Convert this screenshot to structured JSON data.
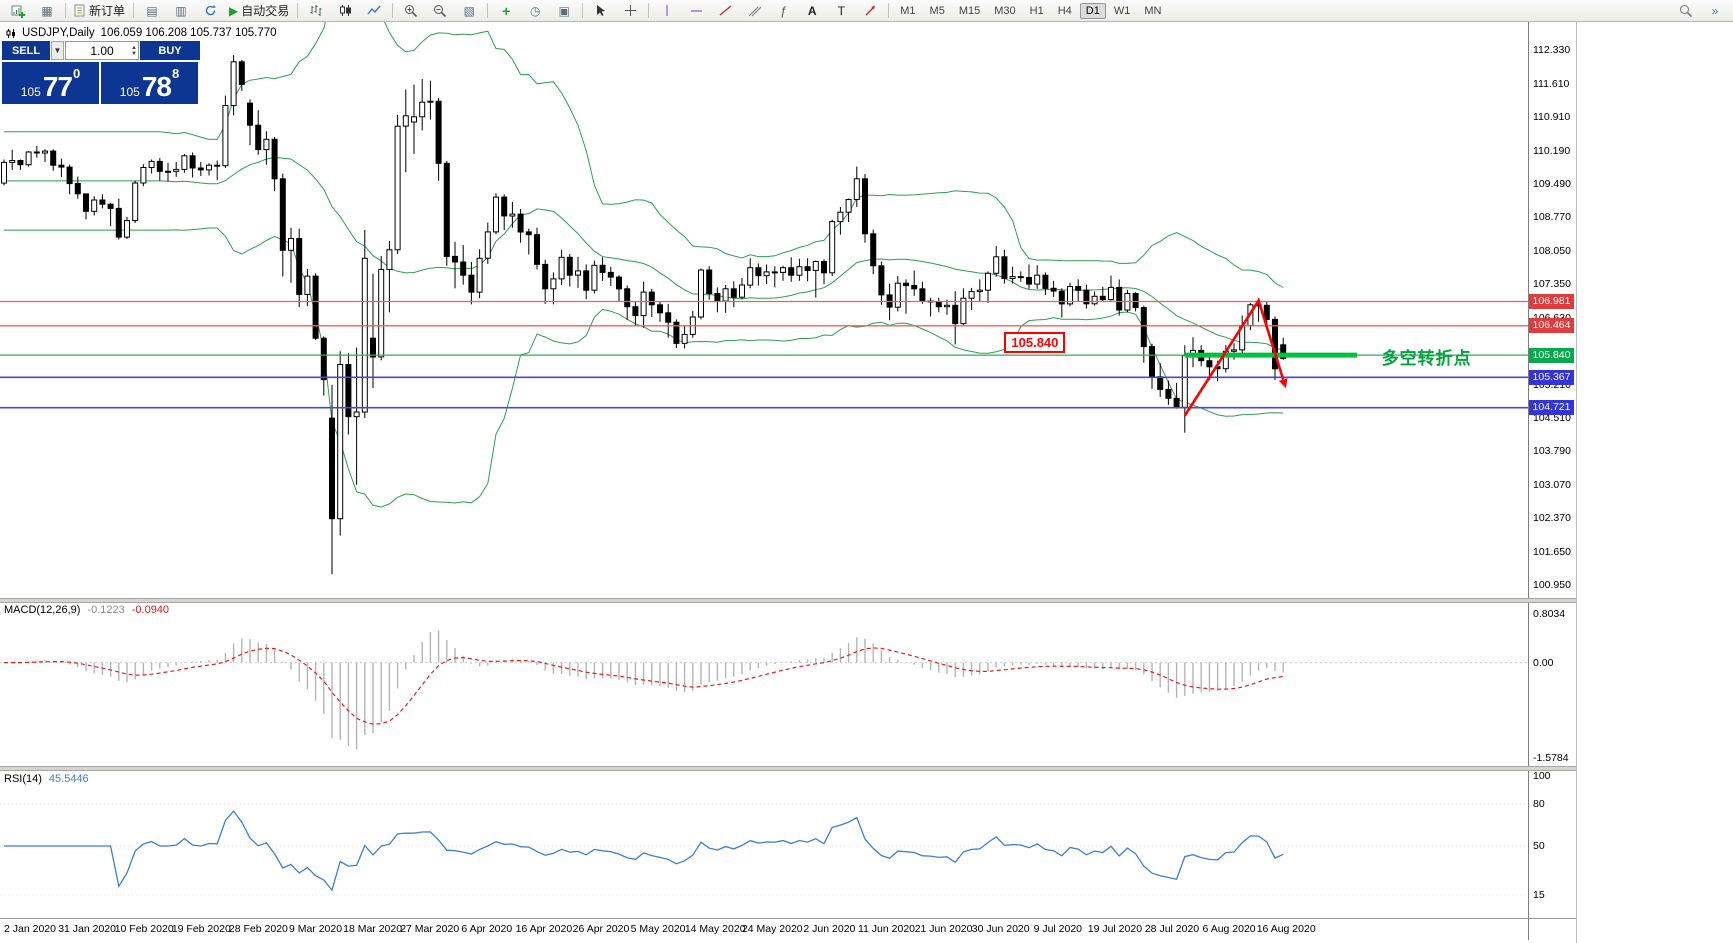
{
  "toolbar": {
    "new_order": "新订单",
    "autotrade": "自动交易",
    "timeframes": [
      "M1",
      "M5",
      "M15",
      "M30",
      "H1",
      "H4",
      "D1",
      "W1",
      "MN"
    ],
    "active_timeframe": "D1"
  },
  "chart_header": {
    "symbol": "USDJPY,Daily",
    "ohlc": "106.059 106.208 105.737 105.770"
  },
  "trade_panel": {
    "sell_label": "SELL",
    "buy_label": "BUY",
    "volume": "1.00",
    "sell_price": {
      "prefix": "105",
      "big": "77",
      "pip": "0"
    },
    "buy_price": {
      "prefix": "105",
      "big": "78",
      "pip": "8"
    }
  },
  "price_axis_ticks": [
    "112.330",
    "111.610",
    "110.910",
    "110.190",
    "109.490",
    "108.770",
    "108.050",
    "107.350",
    "106.630",
    "105.910",
    "105.210",
    "104.510",
    "103.790",
    "103.070",
    "102.370",
    "101.650",
    "100.950"
  ],
  "line_labels": [
    {
      "text": "106.981",
      "color": "#e03c3c"
    },
    {
      "text": "106.464",
      "color": "#e03c3c"
    },
    {
      "text": "105.840",
      "color": "#09a84e"
    },
    {
      "text": "105.367",
      "color": "#3434dd"
    },
    {
      "text": "104.721",
      "color": "#3434dd"
    }
  ],
  "hlines": [
    {
      "price": 106.981,
      "color": "#ee6060",
      "width": 1.3
    },
    {
      "price": 106.464,
      "color": "#ee6060",
      "width": 1.3
    },
    {
      "price": 105.84,
      "color": "#2fae57",
      "width": 1.3
    },
    {
      "price": 105.367,
      "color": "#4646e0",
      "width": 1.6
    },
    {
      "price": 104.721,
      "color": "#4646e0",
      "width": 1.6
    }
  ],
  "annotations": {
    "price_flag": {
      "text": "105.840",
      "index": 122,
      "price": 105.84
    },
    "turning_point": {
      "text": "多空转折点",
      "color": "#00a43c",
      "index": 168,
      "price": 105.84
    },
    "thick_line": {
      "price": 105.84,
      "from_index": 144,
      "to_index": 165,
      "color": "#00c040"
    },
    "zigzag": {
      "color": "#ff0000",
      "points": [
        {
          "index": 144,
          "price": 104.55
        },
        {
          "index": 153,
          "price": 107.0
        },
        {
          "index": 156,
          "price": 105.32
        }
      ]
    }
  },
  "macd_panel": {
    "name": "MACD(12,26,9)",
    "main_value": "-0.1223",
    "signal_value": "-0.0940",
    "axis_labels": [
      "0.8034",
      "0.00",
      "-1.5784"
    ],
    "axis_values": [
      0.8034,
      0,
      -1.5784
    ]
  },
  "rsi_panel": {
    "name": "RSI(14)",
    "value": "45.5446",
    "axis_labels": [
      "100",
      "80",
      "50",
      "15"
    ],
    "axis_values": [
      100,
      80,
      50,
      15
    ]
  },
  "date_axis": [
    "2 Jan 2020",
    "31 Jan 2020",
    "10 Feb 2020",
    "19 Feb 2020",
    "28 Feb 2020",
    "9 Mar 2020",
    "18 Mar 2020",
    "27 Mar 2020",
    "6 Apr 2020",
    "16 Apr 2020",
    "26 Apr 2020",
    "5 May 2020",
    "14 May 2020",
    "24 May 2020",
    "2 Jun 2020",
    "11 Jun 2020",
    "21 Jun 2020",
    "30 Jun 2020",
    "9 Jul 2020",
    "19 Jul 2020",
    "28 Jul 2020",
    "6 Aug 2020",
    "16 Aug 2020"
  ],
  "chart_data": {
    "type": "candlestick",
    "symbol": "USDJPY",
    "timeframe": "Daily",
    "ohlc_current": {
      "open": 106.059,
      "high": 106.208,
      "low": 105.737,
      "close": 105.77
    },
    "y_axis_range": [
      100.95,
      112.33
    ],
    "indicators": {
      "bollinger": "Bollinger Bands (20,2)",
      "macd": "MACD(12,26,9) -0.1223 -0.0940",
      "rsi": "RSI(14) 45.5446"
    },
    "candles": [
      [
        109.5,
        110.0,
        109.45,
        109.94
      ],
      [
        109.94,
        110.21,
        109.78,
        109.98
      ],
      [
        109.98,
        110.0,
        109.78,
        109.89
      ],
      [
        109.89,
        110.18,
        109.85,
        110.16
      ],
      [
        110.16,
        110.29,
        110.04,
        110.14
      ],
      [
        110.14,
        110.22,
        109.95,
        110.18
      ],
      [
        110.18,
        110.22,
        109.76,
        109.88
      ],
      [
        109.88,
        110.02,
        109.63,
        109.84
      ],
      [
        109.84,
        109.89,
        109.26,
        109.49
      ],
      [
        109.49,
        109.64,
        109.17,
        109.27
      ],
      [
        109.27,
        109.27,
        108.73,
        108.9
      ],
      [
        108.9,
        109.22,
        108.81,
        109.14
      ],
      [
        109.14,
        109.26,
        108.96,
        109.05
      ],
      [
        109.05,
        109.08,
        108.58,
        108.96
      ],
      [
        108.96,
        109.17,
        108.3,
        108.35
      ],
      [
        108.35,
        108.78,
        108.31,
        108.7
      ],
      [
        108.7,
        109.55,
        108.65,
        109.5
      ],
      [
        109.5,
        109.9,
        109.43,
        109.83
      ],
      [
        109.83,
        110.0,
        109.7,
        109.96
      ],
      [
        109.96,
        110.03,
        109.55,
        109.75
      ],
      [
        109.75,
        109.93,
        109.53,
        109.75
      ],
      [
        109.75,
        109.95,
        109.63,
        109.79
      ],
      [
        109.79,
        110.12,
        109.72,
        110.08
      ],
      [
        110.08,
        110.15,
        109.62,
        109.82
      ],
      [
        109.82,
        109.95,
        109.65,
        109.78
      ],
      [
        109.78,
        109.92,
        109.66,
        109.88
      ],
      [
        109.88,
        109.98,
        109.56,
        109.87
      ],
      [
        109.87,
        111.36,
        109.82,
        111.15
      ],
      [
        111.15,
        112.22,
        110.94,
        112.08
      ],
      [
        112.08,
        112.12,
        111.46,
        111.6
      ],
      [
        111.2,
        111.28,
        110.3,
        110.73
      ],
      [
        110.73,
        111.05,
        110.1,
        110.21
      ],
      [
        110.21,
        110.6,
        109.89,
        110.43
      ],
      [
        110.43,
        110.48,
        109.33,
        109.59
      ],
      [
        109.59,
        109.7,
        107.51,
        108.07
      ],
      [
        108.07,
        108.55,
        107.38,
        108.32
      ],
      [
        108.32,
        108.53,
        106.86,
        107.13
      ],
      [
        107.13,
        107.67,
        106.88,
        107.52
      ],
      [
        107.52,
        107.58,
        106.16,
        106.2
      ],
      [
        106.2,
        106.24,
        104.98,
        105.32
      ],
      [
        104.5,
        105.21,
        101.18,
        102.36
      ],
      [
        102.36,
        105.92,
        102.0,
        105.64
      ],
      [
        105.64,
        105.88,
        104.15,
        104.53
      ],
      [
        104.53,
        106.0,
        103.08,
        104.63
      ],
      [
        104.63,
        108.5,
        104.5,
        107.9
      ],
      [
        106.2,
        107.57,
        105.14,
        105.8
      ],
      [
        105.8,
        107.95,
        105.73,
        107.66
      ],
      [
        107.66,
        108.27,
        106.75,
        108.08
      ],
      [
        108.08,
        110.95,
        107.99,
        110.71
      ],
      [
        110.71,
        111.49,
        109.73,
        110.93
      ],
      [
        110.8,
        111.59,
        110.12,
        110.91
      ],
      [
        110.91,
        111.71,
        110.62,
        111.22
      ],
      [
        111.22,
        111.68,
        110.85,
        111.24
      ],
      [
        111.24,
        111.31,
        109.55,
        109.92
      ],
      [
        109.92,
        109.97,
        107.74,
        107.94
      ],
      [
        107.94,
        108.25,
        107.26,
        107.82
      ],
      [
        107.82,
        108.18,
        107.34,
        107.54
      ],
      [
        107.54,
        107.82,
        106.92,
        107.18
      ],
      [
        107.18,
        108.09,
        107.05,
        107.9
      ],
      [
        107.9,
        108.66,
        107.78,
        108.46
      ],
      [
        108.46,
        109.28,
        108.41,
        109.2
      ],
      [
        109.2,
        109.26,
        108.5,
        108.8
      ],
      [
        108.8,
        109.1,
        108.55,
        108.84
      ],
      [
        108.84,
        108.95,
        108.23,
        108.46
      ],
      [
        108.46,
        108.53,
        107.98,
        108.4
      ],
      [
        108.4,
        108.55,
        107.66,
        107.77
      ],
      [
        107.77,
        107.87,
        106.93,
        107.25
      ],
      [
        107.25,
        107.6,
        106.92,
        107.46
      ],
      [
        107.46,
        108.08,
        107.33,
        107.92
      ],
      [
        107.92,
        107.99,
        107.3,
        107.54
      ],
      [
        107.54,
        107.93,
        107.27,
        107.63
      ],
      [
        107.63,
        107.77,
        107.03,
        107.22
      ],
      [
        107.22,
        107.85,
        107.15,
        107.75
      ],
      [
        107.75,
        107.92,
        107.42,
        107.6
      ],
      [
        107.6,
        107.72,
        107.31,
        107.5
      ],
      [
        107.5,
        107.54,
        106.99,
        107.25
      ],
      [
        107.25,
        107.32,
        106.59,
        106.87
      ],
      [
        106.87,
        106.98,
        106.45,
        106.68
      ],
      [
        106.68,
        107.4,
        106.42,
        107.18
      ],
      [
        107.18,
        107.25,
        106.65,
        106.91
      ],
      [
        106.91,
        106.98,
        106.55,
        106.74
      ],
      [
        106.74,
        106.93,
        106.21,
        106.54
      ],
      [
        106.54,
        106.6,
        105.99,
        106.09
      ],
      [
        106.09,
        106.45,
        105.98,
        106.28
      ],
      [
        106.28,
        106.78,
        106.21,
        106.65
      ],
      [
        106.65,
        107.68,
        106.6,
        107.65
      ],
      [
        107.65,
        107.73,
        107.02,
        107.15
      ],
      [
        107.15,
        107.28,
        106.75,
        106.99
      ],
      [
        106.99,
        107.33,
        106.74,
        107.25
      ],
      [
        107.25,
        107.41,
        106.86,
        107.07
      ],
      [
        107.07,
        107.48,
        107.03,
        107.33
      ],
      [
        107.33,
        107.9,
        107.26,
        107.7
      ],
      [
        107.7,
        107.79,
        107.32,
        107.53
      ],
      [
        107.53,
        107.77,
        107.35,
        107.61
      ],
      [
        107.61,
        107.73,
        107.28,
        107.6
      ],
      [
        107.6,
        107.74,
        107.42,
        107.7
      ],
      [
        107.7,
        107.92,
        107.4,
        107.54
      ],
      [
        107.54,
        107.89,
        107.42,
        107.72
      ],
      [
        107.72,
        107.9,
        107.41,
        107.64
      ],
      [
        107.64,
        107.85,
        107.06,
        107.83
      ],
      [
        107.83,
        107.88,
        107.35,
        107.59
      ],
      [
        107.59,
        108.72,
        107.52,
        108.68
      ],
      [
        108.68,
        108.99,
        108.4,
        108.88
      ],
      [
        108.88,
        109.17,
        108.67,
        109.15
      ],
      [
        109.15,
        109.85,
        108.99,
        109.59
      ],
      [
        109.59,
        109.69,
        108.23,
        108.42
      ],
      [
        108.42,
        108.51,
        107.56,
        107.74
      ],
      [
        107.74,
        107.83,
        106.91,
        107.12
      ],
      [
        107.12,
        107.36,
        106.58,
        106.86
      ],
      [
        106.86,
        107.52,
        106.77,
        107.37
      ],
      [
        107.37,
        107.45,
        106.72,
        107.32
      ],
      [
        107.32,
        107.64,
        107.1,
        107.25
      ],
      [
        107.25,
        107.4,
        106.93,
        106.99
      ],
      [
        106.99,
        107.06,
        106.66,
        106.97
      ],
      [
        106.97,
        107.06,
        106.75,
        106.87
      ],
      [
        106.87,
        107.02,
        106.7,
        106.9
      ],
      [
        106.9,
        107.2,
        106.07,
        106.51
      ],
      [
        106.51,
        107.26,
        106.47,
        107.05
      ],
      [
        107.05,
        107.27,
        106.8,
        107.19
      ],
      [
        107.19,
        107.45,
        106.99,
        107.22
      ],
      [
        107.22,
        107.62,
        106.95,
        107.58
      ],
      [
        107.58,
        108.16,
        107.51,
        107.93
      ],
      [
        107.93,
        108.08,
        107.36,
        107.47
      ],
      [
        107.47,
        107.72,
        107.36,
        107.51
      ],
      [
        107.51,
        107.62,
        107.4,
        107.49
      ],
      [
        107.49,
        107.77,
        107.25,
        107.35
      ],
      [
        107.35,
        107.75,
        107.25,
        107.54
      ],
      [
        107.54,
        107.6,
        107.12,
        107.26
      ],
      [
        107.26,
        107.42,
        107.08,
        107.2
      ],
      [
        107.2,
        107.26,
        106.64,
        106.93
      ],
      [
        106.93,
        107.38,
        106.88,
        107.3
      ],
      [
        107.3,
        107.45,
        106.98,
        107.22
      ],
      [
        107.22,
        107.34,
        106.83,
        106.93
      ],
      [
        106.93,
        107.19,
        106.89,
        107.09
      ],
      [
        107.09,
        107.29,
        106.97,
        107.02
      ],
      [
        107.02,
        107.53,
        107.0,
        107.28
      ],
      [
        107.28,
        107.45,
        106.68,
        106.8
      ],
      [
        106.8,
        107.23,
        106.75,
        107.15
      ],
      [
        107.15,
        107.18,
        106.77,
        106.85
      ],
      [
        106.85,
        106.89,
        105.68,
        106.02
      ],
      [
        106.02,
        106.08,
        105.12,
        105.38
      ],
      [
        105.38,
        105.67,
        104.95,
        105.11
      ],
      [
        105.11,
        105.3,
        104.78,
        104.92
      ],
      [
        104.92,
        105.25,
        104.7,
        104.73
      ],
      [
        104.73,
        106.05,
        104.19,
        105.83
      ],
      [
        105.83,
        106.22,
        105.58,
        105.94
      ],
      [
        105.94,
        106.05,
        105.6,
        105.72
      ],
      [
        105.72,
        105.88,
        105.31,
        105.59
      ],
      [
        105.59,
        105.72,
        105.28,
        105.55
      ],
      [
        105.55,
        106.05,
        105.47,
        105.92
      ],
      [
        105.92,
        106.09,
        105.74,
        105.95
      ],
      [
        105.95,
        106.68,
        105.86,
        106.47
      ],
      [
        106.47,
        106.95,
        106.37,
        106.91
      ],
      [
        106.91,
        107.05,
        106.55,
        106.9
      ],
      [
        106.9,
        106.98,
        106.4,
        106.6
      ],
      [
        106.6,
        106.66,
        105.31,
        105.55
      ],
      [
        106.06,
        106.21,
        105.74,
        105.77
      ]
    ]
  }
}
